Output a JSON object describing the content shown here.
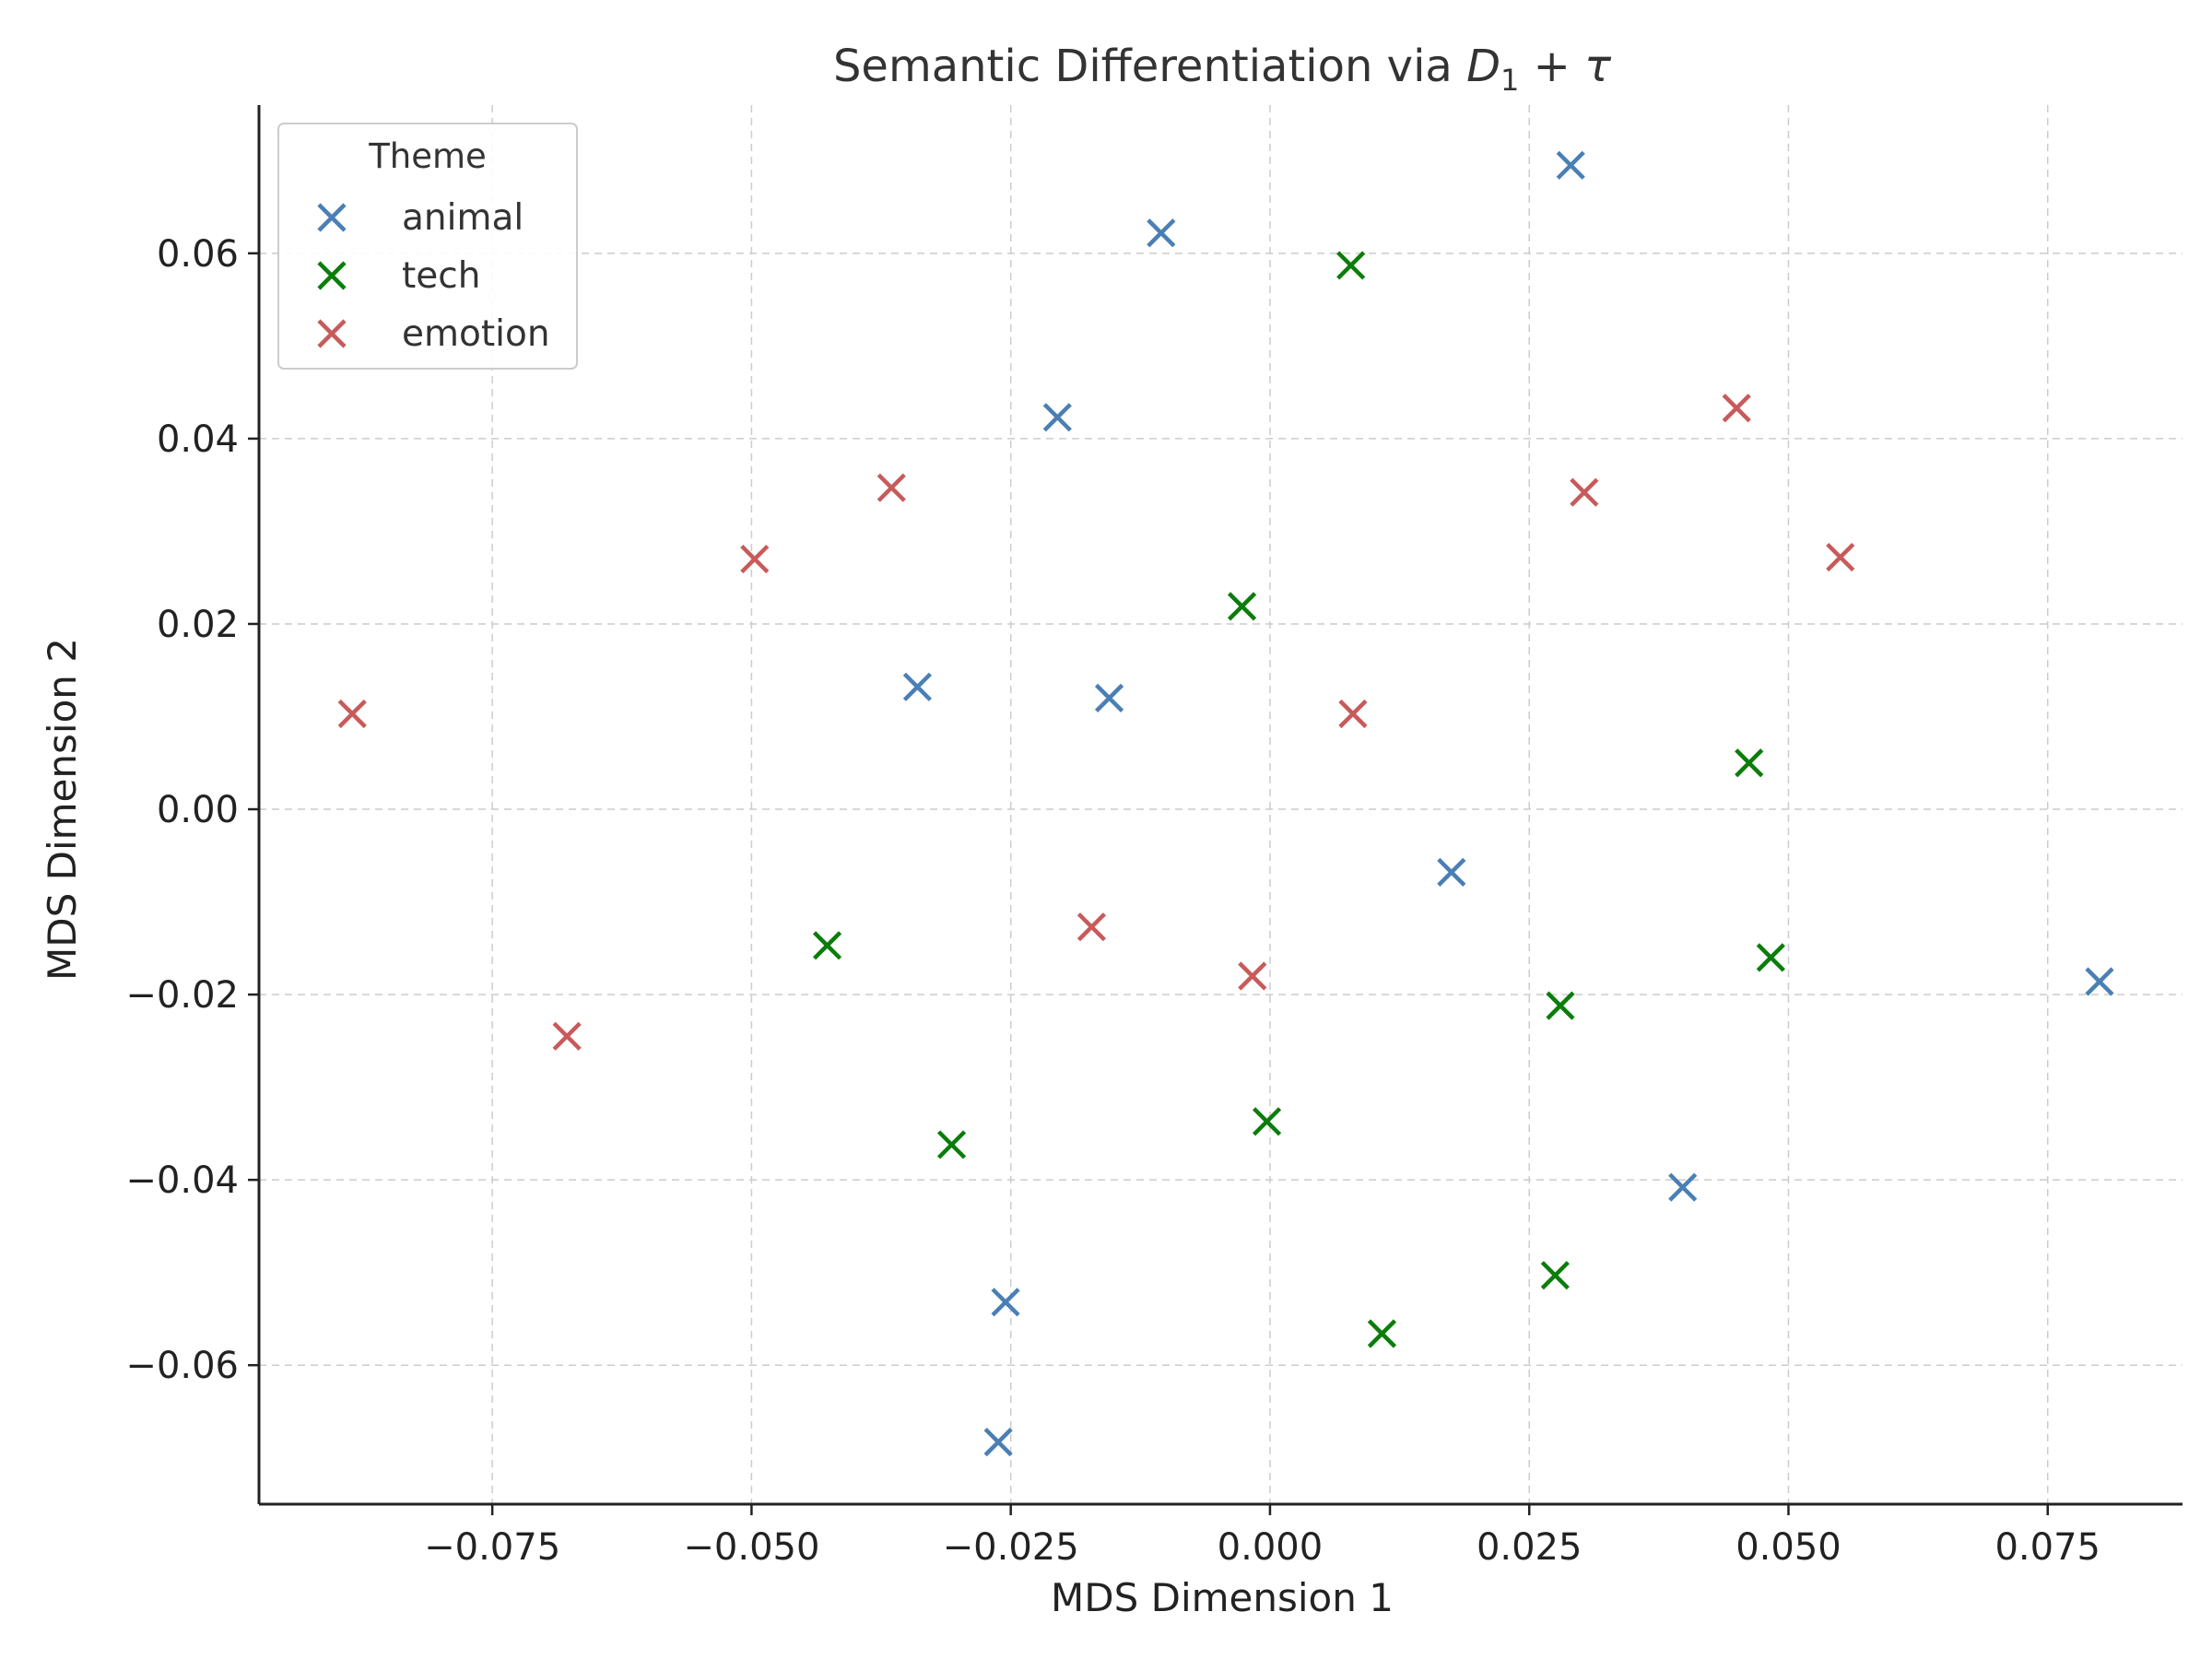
{
  "chart_data": {
    "type": "scatter",
    "title_text": "Semantic Differentiation via ",
    "title_math": [
      "D",
      "1",
      " + τ"
    ],
    "xlabel": "MDS Dimension 1",
    "ylabel": "MDS Dimension 2",
    "xlim": [
      -0.0975,
      0.088
    ],
    "ylim": [
      -0.075,
      0.076
    ],
    "xticks": [
      -0.075,
      -0.05,
      -0.025,
      0.0,
      0.025,
      0.05,
      0.075
    ],
    "xtick_labels": [
      "−0.075",
      "−0.050",
      "−0.025",
      "0.000",
      "0.025",
      "0.050",
      "0.075"
    ],
    "yticks": [
      -0.06,
      -0.04,
      -0.02,
      0.0,
      0.02,
      0.04,
      0.06
    ],
    "ytick_labels": [
      "−0.06",
      "−0.04",
      "−0.02",
      "0.00",
      "0.02",
      "0.04",
      "0.06"
    ],
    "grid": true,
    "marker": "x",
    "legend": {
      "title": "Theme",
      "position": "top-left"
    },
    "series": [
      {
        "name": "animal",
        "color": "#4a7fb5",
        "points": [
          [
            0.029,
            0.0695
          ],
          [
            -0.0105,
            0.0622
          ],
          [
            -0.0205,
            0.0423
          ],
          [
            -0.034,
            0.0132
          ],
          [
            -0.0155,
            0.012
          ],
          [
            0.0175,
            -0.0068
          ],
          [
            0.08,
            -0.0186
          ],
          [
            0.0398,
            -0.0408
          ],
          [
            -0.0255,
            -0.0532
          ],
          [
            -0.0262,
            -0.0683
          ]
        ]
      },
      {
        "name": "tech",
        "color": "#0a7d0a",
        "points": [
          [
            0.0078,
            0.0587
          ],
          [
            -0.0027,
            0.0219
          ],
          [
            0.0462,
            0.005
          ],
          [
            -0.0427,
            -0.0147
          ],
          [
            0.0483,
            -0.016
          ],
          [
            0.028,
            -0.0212
          ],
          [
            -0.0003,
            -0.0337
          ],
          [
            -0.0307,
            -0.0362
          ],
          [
            0.0275,
            -0.0503
          ],
          [
            0.0108,
            -0.0566
          ]
        ]
      },
      {
        "name": "emotion",
        "color": "#c85a5a",
        "points": [
          [
            0.045,
            0.0433
          ],
          [
            -0.0365,
            0.0347
          ],
          [
            0.0303,
            0.0342
          ],
          [
            -0.0497,
            0.027
          ],
          [
            0.055,
            0.0272
          ],
          [
            -0.0885,
            0.0103
          ],
          [
            0.008,
            0.0103
          ],
          [
            -0.0172,
            -0.0127
          ],
          [
            -0.0017,
            -0.018
          ],
          [
            -0.0678,
            -0.0245
          ]
        ]
      }
    ]
  }
}
